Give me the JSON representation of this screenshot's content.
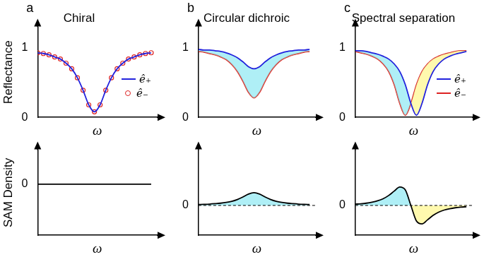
{
  "chart_data": [
    {
      "type": "line",
      "title": "Chiral",
      "annotations": [
        "a"
      ],
      "x_label": "ω",
      "y_label": "Reflectance",
      "x": [
        0,
        0.5,
        1,
        1.5,
        2,
        2.5,
        3,
        3.5,
        4,
        4.5,
        5,
        5.5,
        6,
        6.5,
        7,
        7.5,
        8,
        8.5,
        9,
        9.5,
        10
      ],
      "series": [
        {
          "name": "ê₊",
          "color": "#2222dd",
          "line_style": "solid",
          "marker": "none",
          "values": [
            0.93,
            0.92,
            0.9,
            0.87,
            0.84,
            0.78,
            0.7,
            0.57,
            0.39,
            0.18,
            0.08,
            0.18,
            0.39,
            0.57,
            0.7,
            0.78,
            0.84,
            0.87,
            0.9,
            0.92,
            0.93
          ]
        },
        {
          "name": "ê₋",
          "color": "#dd2222",
          "line_style": "none",
          "marker": "circle",
          "values": [
            0.93,
            0.92,
            0.9,
            0.87,
            0.84,
            0.78,
            0.7,
            0.57,
            0.39,
            0.18,
            0.08,
            0.18,
            0.39,
            0.57,
            0.7,
            0.78,
            0.84,
            0.87,
            0.9,
            0.92,
            0.93
          ]
        }
      ],
      "xlim": [
        0,
        10.5
      ],
      "ylim": [
        0,
        1.3
      ],
      "yticks": [
        0,
        1
      ],
      "grid": false,
      "tick_labels": "y",
      "legend": "lower right"
    },
    {
      "type": "line",
      "title": "Circular dichroic",
      "annotations": [
        "b"
      ],
      "x_label": "ω",
      "x": [
        0,
        0.5,
        1,
        1.5,
        2,
        2.5,
        3,
        3.5,
        4,
        4.5,
        5,
        5.5,
        6,
        6.5,
        7,
        7.5,
        8,
        8.5,
        9,
        9.5,
        10
      ],
      "series": [
        {
          "name": "ê₊",
          "color": "#2222dd",
          "line_style": "solid",
          "marker": "none",
          "values": [
            0.98,
            0.97,
            0.97,
            0.96,
            0.95,
            0.93,
            0.9,
            0.86,
            0.8,
            0.73,
            0.7,
            0.73,
            0.8,
            0.86,
            0.9,
            0.93,
            0.95,
            0.96,
            0.97,
            0.97,
            0.98
          ]
        },
        {
          "name": "ê₋",
          "color": "#dd2222",
          "line_style": "solid",
          "marker": "none",
          "values": [
            0.95,
            0.94,
            0.92,
            0.9,
            0.87,
            0.83,
            0.76,
            0.66,
            0.52,
            0.36,
            0.28,
            0.36,
            0.52,
            0.66,
            0.76,
            0.83,
            0.87,
            0.9,
            0.92,
            0.94,
            0.95
          ]
        }
      ],
      "xlim": [
        0,
        10.5
      ],
      "ylim": [
        0,
        1.3
      ],
      "yticks": [
        0,
        1
      ],
      "grid": false,
      "tick_labels": "y"
    },
    {
      "type": "line",
      "title": "Spectral separation",
      "annotations": [
        "c"
      ],
      "x_label": "ω",
      "x": [
        0,
        0.5,
        1,
        1.5,
        2,
        2.5,
        3,
        3.5,
        4,
        4.5,
        5,
        5.5,
        6,
        6.5,
        7,
        7.5,
        8,
        8.5,
        9,
        9.5,
        10
      ],
      "series": [
        {
          "name": "ê₊",
          "color": "#2222dd",
          "line_style": "solid",
          "marker": "none",
          "values": [
            0.96,
            0.96,
            0.95,
            0.93,
            0.91,
            0.88,
            0.84,
            0.77,
            0.66,
            0.47,
            0.2,
            0.03,
            0.2,
            0.47,
            0.66,
            0.77,
            0.84,
            0.88,
            0.91,
            0.93,
            0.95
          ]
        },
        {
          "name": "ê₋",
          "color": "#dd2222",
          "line_style": "solid",
          "marker": "none",
          "values": [
            0.95,
            0.93,
            0.91,
            0.88,
            0.84,
            0.77,
            0.66,
            0.47,
            0.2,
            0.03,
            0.2,
            0.47,
            0.66,
            0.77,
            0.84,
            0.88,
            0.91,
            0.93,
            0.95,
            0.96,
            0.96
          ]
        }
      ],
      "xlim": [
        0,
        10.5
      ],
      "ylim": [
        0,
        1.3
      ],
      "yticks": [
        0,
        1
      ],
      "grid": false,
      "tick_labels": "y",
      "legend": "lower right"
    },
    {
      "type": "line",
      "x_label": "ω",
      "y_label": "SAM Density",
      "x": [
        0,
        0.5,
        1,
        1.5,
        2,
        2.5,
        3,
        3.5,
        4,
        4.5,
        5,
        5.5,
        6,
        6.5,
        7,
        7.5,
        8,
        8.5,
        9,
        9.5,
        10
      ],
      "values": [
        0,
        0,
        0,
        0,
        0,
        0,
        0,
        0,
        0,
        0,
        0,
        0,
        0,
        0,
        0,
        0,
        0,
        0,
        0,
        0,
        0
      ],
      "color": "#000000",
      "xlim": [
        0,
        10.5
      ],
      "ylim": [
        -0.6,
        0.4
      ],
      "yticks": [
        0
      ],
      "grid": false,
      "tick_labels": "y"
    },
    {
      "type": "line",
      "x_label": "ω",
      "x": [
        0,
        0.5,
        1,
        1.5,
        2,
        2.5,
        3,
        3.5,
        4,
        4.5,
        5,
        5.5,
        6,
        6.5,
        7,
        7.5,
        8,
        8.5,
        9,
        9.5,
        10
      ],
      "values": [
        0.011,
        0.013,
        0.016,
        0.021,
        0.027,
        0.036,
        0.049,
        0.07,
        0.099,
        0.133,
        0.15,
        0.133,
        0.099,
        0.07,
        0.049,
        0.036,
        0.027,
        0.021,
        0.016,
        0.013,
        0.011
      ],
      "color": "#000000",
      "xlim": [
        0,
        10.5
      ],
      "ylim": [
        -0.35,
        0.65
      ],
      "yticks": [
        0
      ],
      "grid": true,
      "tick_labels": "y"
    },
    {
      "type": "line",
      "x_label": "ω",
      "x": [
        0,
        0.5,
        1,
        1.5,
        2,
        2.5,
        3,
        3.5,
        4,
        4.5,
        5,
        5.5,
        6,
        6.5,
        7,
        7.5,
        8,
        8.5,
        9,
        9.5,
        10
      ],
      "values": [
        0.015,
        0.02,
        0.027,
        0.038,
        0.054,
        0.079,
        0.117,
        0.169,
        0.217,
        0.183,
        0,
        -0.183,
        -0.217,
        -0.169,
        -0.117,
        -0.079,
        -0.054,
        -0.038,
        -0.027,
        -0.02,
        -0.015
      ],
      "color": "#000000",
      "xlim": [
        0,
        10.5
      ],
      "ylim": [
        -0.35,
        0.65
      ],
      "yticks": [
        0
      ],
      "grid": true,
      "tick_labels": "y"
    }
  ]
}
